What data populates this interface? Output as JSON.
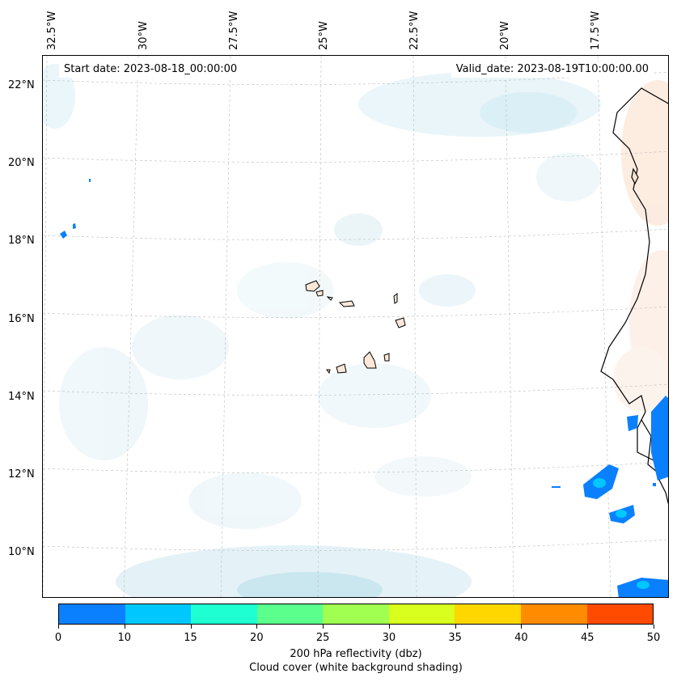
{
  "map": {
    "start_date": "Start date: 2023-08-18_00:00:00",
    "valid_date": "Valid_date: 2023-08-19T10:00:00.00",
    "lon_labels": [
      "32.5°W",
      "30°W",
      "27.5°W",
      "25°W",
      "22.5°W",
      "20°W",
      "17.5°W"
    ],
    "lat_labels": [
      "22°N",
      "20°N",
      "18°N",
      "16°N",
      "14°N",
      "12°N",
      "10°N"
    ],
    "regions": [
      "Cape Verde islands",
      "West African coast"
    ],
    "reflectivity_color": "#0a80ff",
    "coast_color": "#000000",
    "cloud_color": "#bfe3ef",
    "warm_color": "#f8c8a8"
  },
  "colorbar": {
    "label_line1": "200 hPa reflectivity (dbz)",
    "label_line2": "Cloud cover (white background shading)",
    "ticks": [
      "0",
      "10",
      "15",
      "20",
      "25",
      "30",
      "35",
      "40",
      "45",
      "50"
    ],
    "colors": [
      "#0a80ff",
      "#00c8ff",
      "#1effd2",
      "#5aff8c",
      "#a0ff50",
      "#d8ff1e",
      "#ffd700",
      "#ff8c00",
      "#ff4b00"
    ]
  }
}
